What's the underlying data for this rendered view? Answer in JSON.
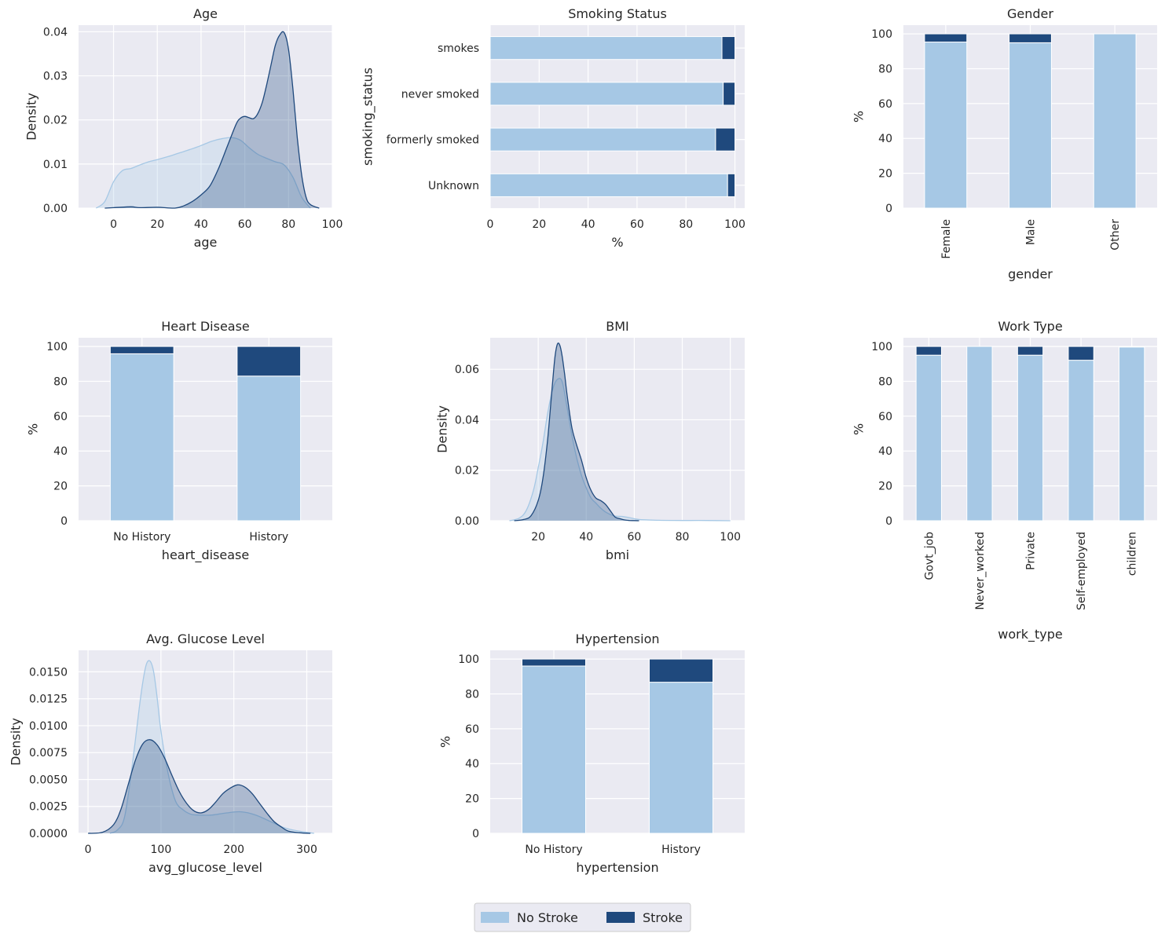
{
  "colors": {
    "no_stroke": "#a6c8e5",
    "stroke": "#1f497d",
    "axes_bg": "#eaeaf2",
    "grid": "#ffffff"
  },
  "legend": {
    "placement": "bottom-center",
    "entries": [
      {
        "label": "No Stroke",
        "color": "#a6c8e5"
      },
      {
        "label": "Stroke",
        "color": "#1f497d"
      }
    ]
  },
  "chart_data": [
    {
      "id": "age",
      "type": "area",
      "subtype": "kde",
      "title": "Age",
      "xlabel": "age",
      "ylabel": "Density",
      "xlim": [
        -16,
        100
      ],
      "ylim": [
        0,
        0.0415
      ],
      "xticks": [
        0,
        20,
        40,
        60,
        80,
        100
      ],
      "xtick_labels": [
        "0",
        "20",
        "40",
        "60",
        "80",
        "100"
      ],
      "yticks": [
        0,
        0.01,
        0.02,
        0.03,
        0.04
      ],
      "ytick_labels": [
        "0.00",
        "0.01",
        "0.02",
        "0.03",
        "0.04"
      ],
      "grid": true,
      "series": [
        {
          "name": "No Stroke",
          "color": "#a6c8e5",
          "x": [
            -8,
            -4,
            0,
            4,
            8,
            12,
            16,
            20,
            25,
            30,
            35,
            40,
            45,
            50,
            54,
            58,
            62,
            66,
            70,
            74,
            78,
            82,
            86,
            90
          ],
          "y": [
            0,
            0.0015,
            0.006,
            0.0085,
            0.009,
            0.0098,
            0.0105,
            0.011,
            0.0117,
            0.0125,
            0.0133,
            0.0142,
            0.0152,
            0.0158,
            0.016,
            0.0154,
            0.0137,
            0.0122,
            0.0113,
            0.0105,
            0.0098,
            0.007,
            0.0025,
            0
          ]
        },
        {
          "name": "Stroke",
          "color": "#1f497d",
          "x": [
            -4,
            0,
            8,
            12,
            20,
            28,
            32,
            36,
            40,
            44,
            48,
            52,
            56,
            58,
            60,
            62,
            64,
            66,
            68,
            70,
            72,
            74,
            76,
            78,
            80,
            82,
            84,
            86,
            88,
            90,
            94
          ],
          "y": [
            0,
            0.0001,
            0.0003,
            0.0001,
            0.0002,
            0,
            0.0005,
            0.0015,
            0.003,
            0.005,
            0.009,
            0.014,
            0.019,
            0.0204,
            0.0208,
            0.0205,
            0.0203,
            0.0215,
            0.024,
            0.028,
            0.0325,
            0.037,
            0.0393,
            0.0398,
            0.036,
            0.027,
            0.016,
            0.0075,
            0.0025,
            0.0008,
            0
          ]
        }
      ]
    },
    {
      "id": "smoking",
      "type": "bar",
      "orientation": "horizontal",
      "stacked": true,
      "title": "Smoking Status",
      "xlabel": "%",
      "ylabel": "smoking_status",
      "xlim": [
        0,
        104
      ],
      "xticks": [
        0,
        20,
        40,
        60,
        80,
        100
      ],
      "xtick_labels": [
        "0",
        "20",
        "40",
        "60",
        "80",
        "100"
      ],
      "grid": true,
      "categories": [
        "Unknown",
        "formerly smoked",
        "never smoked",
        "smokes"
      ],
      "series": [
        {
          "name": "No Stroke",
          "color": "#a6c8e5",
          "values": [
            97.0,
            92.1,
            95.2,
            94.7
          ]
        },
        {
          "name": "Stroke",
          "color": "#1f497d",
          "values": [
            3.0,
            7.9,
            4.8,
            5.3
          ]
        }
      ]
    },
    {
      "id": "gender",
      "type": "bar",
      "stacked": true,
      "title": "Gender",
      "xlabel": "gender",
      "ylabel": "%",
      "ylim": [
        0,
        105
      ],
      "yticks": [
        0,
        20,
        40,
        60,
        80,
        100
      ],
      "ytick_labels": [
        "0",
        "20",
        "40",
        "60",
        "80",
        "100"
      ],
      "rotate_xticks": true,
      "grid": true,
      "categories": [
        "Female",
        "Male",
        "Other"
      ],
      "series": [
        {
          "name": "No Stroke",
          "color": "#a6c8e5",
          "values": [
            95.3,
            94.9,
            100
          ]
        },
        {
          "name": "Stroke",
          "color": "#1f497d",
          "values": [
            4.7,
            5.1,
            0
          ]
        }
      ]
    },
    {
      "id": "heart",
      "type": "bar",
      "stacked": true,
      "title": "Heart Disease",
      "xlabel": "heart_disease",
      "ylabel": "%",
      "ylim": [
        0,
        105
      ],
      "yticks": [
        0,
        20,
        40,
        60,
        80,
        100
      ],
      "ytick_labels": [
        "0",
        "20",
        "40",
        "60",
        "80",
        "100"
      ],
      "grid": true,
      "categories": [
        "No History",
        "History"
      ],
      "series": [
        {
          "name": "No Stroke",
          "color": "#a6c8e5",
          "values": [
            95.8,
            83.0
          ]
        },
        {
          "name": "Stroke",
          "color": "#1f497d",
          "values": [
            4.2,
            17.0
          ]
        }
      ]
    },
    {
      "id": "bmi",
      "type": "area",
      "subtype": "kde",
      "title": "BMI",
      "xlabel": "bmi",
      "ylabel": "Density",
      "xlim": [
        0,
        106
      ],
      "ylim": [
        0,
        0.0725
      ],
      "xticks": [
        20,
        40,
        60,
        80,
        100
      ],
      "xtick_labels": [
        "20",
        "40",
        "60",
        "80",
        "100"
      ],
      "yticks": [
        0,
        0.02,
        0.04,
        0.06
      ],
      "ytick_labels": [
        "0.00",
        "0.02",
        "0.04",
        "0.06"
      ],
      "grid": true,
      "series": [
        {
          "name": "No Stroke",
          "color": "#a6c8e5",
          "x": [
            8,
            12,
            15,
            18,
            20,
            22,
            24,
            26,
            28,
            30,
            32,
            34,
            36,
            38,
            40,
            42,
            44,
            46,
            48,
            50,
            52,
            55,
            58,
            62,
            70,
            80,
            90,
            100
          ],
          "y": [
            0,
            0.001,
            0.004,
            0.012,
            0.021,
            0.031,
            0.043,
            0.052,
            0.056,
            0.055,
            0.045,
            0.034,
            0.025,
            0.018,
            0.013,
            0.009,
            0.007,
            0.005,
            0.0035,
            0.0025,
            0.0018,
            0.0017,
            0.0012,
            0.0005,
            0.0002,
            0.0001,
            0.0001,
            0
          ]
        },
        {
          "name": "Stroke",
          "color": "#1f497d",
          "x": [
            10,
            14,
            17,
            20,
            22,
            24,
            26,
            27,
            28,
            29,
            30,
            31,
            32,
            34,
            36,
            38,
            40,
            42,
            44,
            46,
            48,
            50,
            52,
            54,
            56,
            58,
            62
          ],
          "y": [
            0,
            0.0005,
            0.002,
            0.008,
            0.017,
            0.033,
            0.055,
            0.065,
            0.07,
            0.0695,
            0.065,
            0.058,
            0.05,
            0.037,
            0.03,
            0.024,
            0.017,
            0.012,
            0.009,
            0.008,
            0.0065,
            0.004,
            0.0015,
            0.0008,
            0.0003,
            0.0001,
            0
          ]
        }
      ]
    },
    {
      "id": "work",
      "type": "bar",
      "stacked": true,
      "title": "Work Type",
      "xlabel": "work_type",
      "ylabel": "%",
      "ylim": [
        0,
        105
      ],
      "yticks": [
        0,
        20,
        40,
        60,
        80,
        100
      ],
      "ytick_labels": [
        "0",
        "20",
        "40",
        "60",
        "80",
        "100"
      ],
      "rotate_xticks": true,
      "grid": true,
      "categories": [
        "Govt_job",
        "Never_worked",
        "Private",
        "Self-employed",
        "children"
      ],
      "series": [
        {
          "name": "No Stroke",
          "color": "#a6c8e5",
          "values": [
            95.0,
            100,
            95.0,
            92.1,
            99.7
          ]
        },
        {
          "name": "Stroke",
          "color": "#1f497d",
          "values": [
            5.0,
            0,
            5.0,
            7.9,
            0.3
          ]
        }
      ]
    },
    {
      "id": "glucose",
      "type": "area",
      "subtype": "kde",
      "title": "Avg. Glucose Level",
      "xlabel": "avg_glucose_level",
      "ylabel": "Density",
      "xlim": [
        -13,
        335
      ],
      "ylim": [
        0,
        0.017
      ],
      "xticks": [
        0,
        100,
        200,
        300
      ],
      "xtick_labels": [
        "0",
        "100",
        "200",
        "300"
      ],
      "yticks": [
        0,
        0.0025,
        0.005,
        0.0075,
        0.01,
        0.0125,
        0.015
      ],
      "ytick_labels": [
        "0.0000",
        "0.0025",
        "0.0050",
        "0.0075",
        "0.0100",
        "0.0125",
        "0.0150"
      ],
      "grid": true,
      "series": [
        {
          "name": "No Stroke",
          "color": "#a6c8e5",
          "x": [
            30,
            40,
            50,
            60,
            70,
            75,
            80,
            85,
            90,
            95,
            100,
            110,
            120,
            130,
            140,
            150,
            170,
            190,
            210,
            230,
            250,
            270,
            290,
            310
          ],
          "y": [
            0,
            0.0003,
            0.0015,
            0.006,
            0.0115,
            0.014,
            0.0157,
            0.016,
            0.015,
            0.0125,
            0.0095,
            0.0055,
            0.003,
            0.0022,
            0.0018,
            0.0017,
            0.0017,
            0.0019,
            0.002,
            0.0017,
            0.0011,
            0.0005,
            0.0002,
            0
          ]
        },
        {
          "name": "Stroke",
          "color": "#1f497d",
          "x": [
            0,
            20,
            35,
            45,
            55,
            65,
            75,
            85,
            95,
            105,
            115,
            125,
            135,
            145,
            155,
            165,
            175,
            185,
            195,
            205,
            215,
            225,
            235,
            245,
            255,
            265,
            275,
            290,
            305
          ],
          "y": [
            0,
            0.0001,
            0.0008,
            0.0022,
            0.0045,
            0.0068,
            0.0083,
            0.0087,
            0.0082,
            0.007,
            0.0054,
            0.0039,
            0.0028,
            0.0021,
            0.0019,
            0.0022,
            0.0029,
            0.0037,
            0.0042,
            0.0045,
            0.0043,
            0.0037,
            0.0028,
            0.0019,
            0.0011,
            0.0006,
            0.0002,
            5e-05,
            0
          ]
        }
      ]
    },
    {
      "id": "hyper",
      "type": "bar",
      "stacked": true,
      "title": "Hypertension",
      "xlabel": "hypertension",
      "ylabel": "%",
      "ylim": [
        0,
        105
      ],
      "yticks": [
        0,
        20,
        40,
        60,
        80,
        100
      ],
      "ytick_labels": [
        "0",
        "20",
        "40",
        "60",
        "80",
        "100"
      ],
      "grid": true,
      "categories": [
        "No History",
        "History"
      ],
      "series": [
        {
          "name": "No Stroke",
          "color": "#a6c8e5",
          "values": [
            96.0,
            86.7
          ]
        },
        {
          "name": "Stroke",
          "color": "#1f497d",
          "values": [
            4.0,
            13.3
          ]
        }
      ]
    }
  ]
}
